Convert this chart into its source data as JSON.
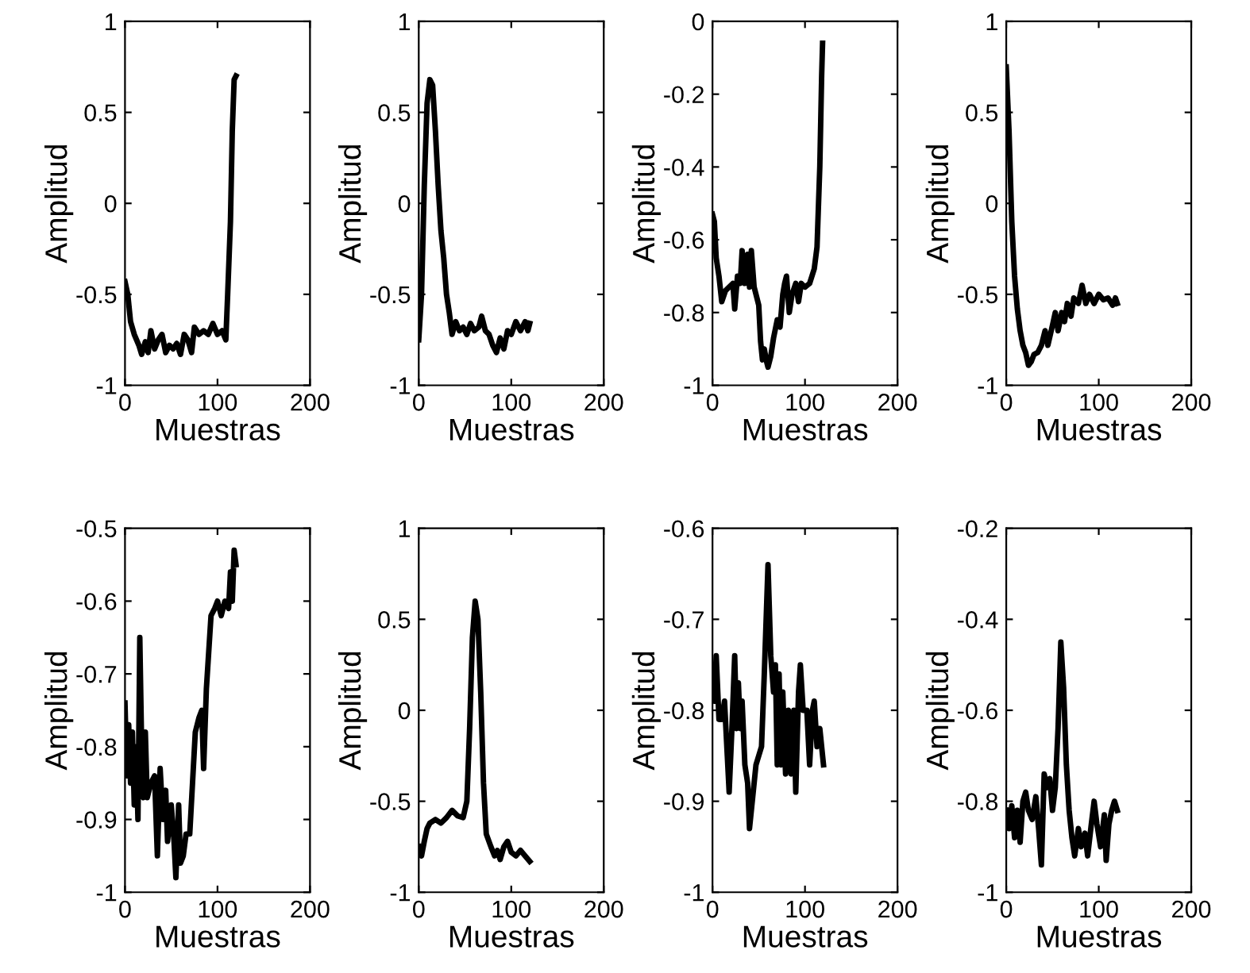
{
  "chart_data": [
    {
      "type": "line",
      "xlabel": "Muestras",
      "ylabel": "Amplitud",
      "xlim": [
        0,
        200
      ],
      "xticks": [
        0,
        100,
        200
      ],
      "ylim": [
        -1,
        1
      ],
      "yticks": [
        -1,
        -0.5,
        0,
        0.5,
        1
      ],
      "series": [
        {
          "color": "#000000",
          "x": [
            0,
            3,
            6,
            10,
            15,
            18,
            22,
            25,
            28,
            32,
            36,
            40,
            44,
            48,
            52,
            56,
            60,
            64,
            68,
            72,
            75,
            80,
            85,
            90,
            95,
            100,
            105,
            109,
            111,
            114,
            116,
            118,
            120
          ],
          "values": [
            -0.43,
            -0.5,
            -0.65,
            -0.72,
            -0.78,
            -0.83,
            -0.76,
            -0.82,
            -0.7,
            -0.8,
            -0.75,
            -0.72,
            -0.82,
            -0.78,
            -0.8,
            -0.77,
            -0.83,
            -0.72,
            -0.75,
            -0.82,
            -0.68,
            -0.72,
            -0.7,
            -0.72,
            -0.66,
            -0.72,
            -0.7,
            -0.75,
            -0.5,
            -0.1,
            0.4,
            0.68,
            0.7
          ]
        }
      ]
    },
    {
      "type": "line",
      "xlabel": "Muestras",
      "ylabel": "Amplitud",
      "xlim": [
        0,
        200
      ],
      "xticks": [
        0,
        100,
        200
      ],
      "ylim": [
        -1,
        1
      ],
      "yticks": [
        -1,
        -0.5,
        0,
        0.5,
        1
      ],
      "series": [
        {
          "color": "#000000",
          "x": [
            0,
            3,
            6,
            9,
            12,
            15,
            18,
            21,
            24,
            27,
            30,
            33,
            36,
            40,
            44,
            48,
            52,
            56,
            60,
            65,
            68,
            72,
            76,
            80,
            84,
            88,
            92,
            96,
            100,
            105,
            110,
            115,
            118,
            120
          ],
          "values": [
            -0.75,
            -0.5,
            0.1,
            0.55,
            0.68,
            0.65,
            0.4,
            0.1,
            -0.15,
            -0.3,
            -0.5,
            -0.6,
            -0.72,
            -0.65,
            -0.7,
            -0.68,
            -0.72,
            -0.66,
            -0.7,
            -0.68,
            -0.62,
            -0.7,
            -0.72,
            -0.78,
            -0.82,
            -0.74,
            -0.8,
            -0.7,
            -0.72,
            -0.65,
            -0.7,
            -0.65,
            -0.7,
            -0.66
          ]
        }
      ]
    },
    {
      "type": "line",
      "xlabel": "Muestras",
      "ylabel": "Amplitud",
      "xlim": [
        0,
        200
      ],
      "xticks": [
        0,
        100,
        200
      ],
      "ylim": [
        -1,
        0
      ],
      "yticks": [
        -1,
        -0.8,
        -0.6,
        -0.4,
        -0.2,
        0
      ],
      "series": [
        {
          "color": "#000000",
          "x": [
            0,
            2,
            4,
            7,
            10,
            14,
            18,
            22,
            24,
            27,
            30,
            32,
            35,
            38,
            40,
            42,
            45,
            48,
            50,
            52,
            54,
            56,
            58,
            60,
            63,
            66,
            70,
            73,
            76,
            78,
            80,
            83,
            86,
            90,
            93,
            96,
            100,
            105,
            110,
            113,
            116,
            118,
            119
          ],
          "values": [
            -0.53,
            -0.55,
            -0.65,
            -0.7,
            -0.77,
            -0.74,
            -0.73,
            -0.72,
            -0.79,
            -0.7,
            -0.72,
            -0.63,
            -0.72,
            -0.64,
            -0.73,
            -0.63,
            -0.73,
            -0.76,
            -0.78,
            -0.88,
            -0.93,
            -0.9,
            -0.93,
            -0.95,
            -0.92,
            -0.87,
            -0.82,
            -0.84,
            -0.75,
            -0.72,
            -0.7,
            -0.8,
            -0.75,
            -0.72,
            -0.77,
            -0.72,
            -0.73,
            -0.72,
            -0.68,
            -0.62,
            -0.4,
            -0.15,
            -0.06
          ]
        }
      ]
    },
    {
      "type": "line",
      "xlabel": "Muestras",
      "ylabel": "Amplitud",
      "xlim": [
        0,
        200
      ],
      "xticks": [
        0,
        100,
        200
      ],
      "ylim": [
        -1,
        1
      ],
      "yticks": [
        -1,
        -0.5,
        0,
        0.5,
        1
      ],
      "series": [
        {
          "color": "#000000",
          "x": [
            0,
            3,
            6,
            9,
            12,
            15,
            18,
            21,
            24,
            27,
            30,
            34,
            38,
            42,
            45,
            50,
            53,
            56,
            60,
            63,
            66,
            70,
            73,
            78,
            82,
            86,
            90,
            95,
            100,
            105,
            110,
            115,
            118,
            120
          ],
          "values": [
            0.75,
            0.4,
            -0.1,
            -0.4,
            -0.58,
            -0.7,
            -0.78,
            -0.82,
            -0.89,
            -0.87,
            -0.83,
            -0.82,
            -0.78,
            -0.7,
            -0.78,
            -0.67,
            -0.6,
            -0.7,
            -0.6,
            -0.65,
            -0.55,
            -0.62,
            -0.52,
            -0.55,
            -0.45,
            -0.55,
            -0.5,
            -0.55,
            -0.5,
            -0.53,
            -0.52,
            -0.56,
            -0.52,
            -0.55
          ]
        }
      ]
    },
    {
      "type": "line",
      "xlabel": "Muestras",
      "ylabel": "Amplitud",
      "xlim": [
        0,
        200
      ],
      "xticks": [
        0,
        100,
        200
      ],
      "ylim": [
        -1,
        -0.5
      ],
      "yticks": [
        -1,
        -0.9,
        -0.8,
        -0.7,
        -0.6,
        -0.5
      ],
      "series": [
        {
          "color": "#000000",
          "x": [
            0,
            2,
            4,
            6,
            8,
            10,
            12,
            14,
            16,
            18,
            20,
            22,
            24,
            28,
            32,
            35,
            38,
            41,
            44,
            46,
            50,
            53,
            55,
            58,
            60,
            63,
            66,
            70,
            73,
            76,
            80,
            83,
            85,
            88,
            90,
            93,
            97,
            100,
            104,
            108,
            112,
            114,
            116,
            118,
            120
          ],
          "values": [
            -0.74,
            -0.84,
            -0.77,
            -0.85,
            -0.78,
            -0.88,
            -0.8,
            -0.9,
            -0.65,
            -0.8,
            -0.87,
            -0.78,
            -0.87,
            -0.85,
            -0.84,
            -0.95,
            -0.83,
            -0.9,
            -0.86,
            -0.93,
            -0.88,
            -0.93,
            -0.98,
            -0.88,
            -0.96,
            -0.95,
            -0.92,
            -0.92,
            -0.85,
            -0.78,
            -0.76,
            -0.75,
            -0.83,
            -0.72,
            -0.68,
            -0.62,
            -0.61,
            -0.6,
            -0.62,
            -0.6,
            -0.61,
            -0.56,
            -0.6,
            -0.53,
            -0.55
          ]
        }
      ]
    },
    {
      "type": "line",
      "xlabel": "Muestras",
      "ylabel": "Amplitud",
      "xlim": [
        0,
        200
      ],
      "xticks": [
        0,
        100,
        200
      ],
      "ylim": [
        -1,
        1
      ],
      "yticks": [
        -1,
        -0.5,
        0,
        0.5,
        1
      ],
      "series": [
        {
          "color": "#000000",
          "x": [
            0,
            3,
            6,
            9,
            12,
            18,
            24,
            30,
            36,
            42,
            48,
            52,
            55,
            58,
            61,
            64,
            67,
            70,
            73,
            78,
            82,
            85,
            88,
            92,
            96,
            100,
            105,
            110,
            115,
            120
          ],
          "values": [
            -0.75,
            -0.8,
            -0.72,
            -0.65,
            -0.62,
            -0.6,
            -0.62,
            -0.59,
            -0.55,
            -0.58,
            -0.59,
            -0.5,
            -0.1,
            0.4,
            0.6,
            0.5,
            0.1,
            -0.4,
            -0.68,
            -0.75,
            -0.8,
            -0.77,
            -0.82,
            -0.75,
            -0.72,
            -0.78,
            -0.8,
            -0.77,
            -0.8,
            -0.83
          ]
        }
      ]
    },
    {
      "type": "line",
      "xlabel": "Muestras",
      "ylabel": "Amplitud",
      "xlim": [
        0,
        200
      ],
      "xticks": [
        0,
        100,
        200
      ],
      "ylim": [
        -1,
        -0.6
      ],
      "yticks": [
        -1,
        -0.9,
        -0.8,
        -0.7,
        -0.6
      ],
      "series": [
        {
          "color": "#000000",
          "x": [
            0,
            2,
            4,
            7,
            10,
            13,
            16,
            18,
            21,
            24,
            26,
            28,
            30,
            32,
            35,
            38,
            40,
            43,
            47,
            50,
            53,
            56,
            60,
            63,
            66,
            68,
            70,
            72,
            74,
            76,
            79,
            82,
            85,
            88,
            90,
            93,
            95,
            98,
            102,
            105,
            108,
            110,
            113,
            116,
            120
          ],
          "values": [
            -0.75,
            -0.79,
            -0.74,
            -0.81,
            -0.81,
            -0.79,
            -0.85,
            -0.89,
            -0.82,
            -0.74,
            -0.82,
            -0.77,
            -0.82,
            -0.79,
            -0.86,
            -0.88,
            -0.93,
            -0.9,
            -0.86,
            -0.85,
            -0.84,
            -0.76,
            -0.64,
            -0.74,
            -0.78,
            -0.75,
            -0.86,
            -0.76,
            -0.86,
            -0.78,
            -0.87,
            -0.8,
            -0.87,
            -0.8,
            -0.89,
            -0.78,
            -0.75,
            -0.8,
            -0.8,
            -0.86,
            -0.8,
            -0.79,
            -0.84,
            -0.82,
            -0.86
          ]
        }
      ]
    },
    {
      "type": "line",
      "xlabel": "Muestras",
      "ylabel": "Amplitud",
      "xlim": [
        0,
        200
      ],
      "xticks": [
        0,
        100,
        200
      ],
      "ylim": [
        -1,
        -0.2
      ],
      "yticks": [
        -1,
        -0.8,
        -0.6,
        -0.4,
        -0.2
      ],
      "series": [
        {
          "color": "#000000",
          "x": [
            0,
            3,
            6,
            9,
            12,
            15,
            18,
            21,
            24,
            28,
            32,
            35,
            38,
            41,
            44,
            47,
            50,
            53,
            56,
            59,
            62,
            65,
            68,
            71,
            74,
            78,
            81,
            85,
            88,
            92,
            95,
            98,
            102,
            106,
            108,
            111,
            114,
            117,
            120
          ],
          "values": [
            -0.82,
            -0.86,
            -0.81,
            -0.88,
            -0.82,
            -0.89,
            -0.8,
            -0.78,
            -0.82,
            -0.84,
            -0.79,
            -0.86,
            -0.94,
            -0.74,
            -0.77,
            -0.75,
            -0.82,
            -0.77,
            -0.64,
            -0.45,
            -0.55,
            -0.72,
            -0.82,
            -0.88,
            -0.92,
            -0.86,
            -0.9,
            -0.87,
            -0.92,
            -0.85,
            -0.8,
            -0.85,
            -0.9,
            -0.83,
            -0.93,
            -0.85,
            -0.82,
            -0.8,
            -0.82
          ]
        }
      ]
    }
  ]
}
